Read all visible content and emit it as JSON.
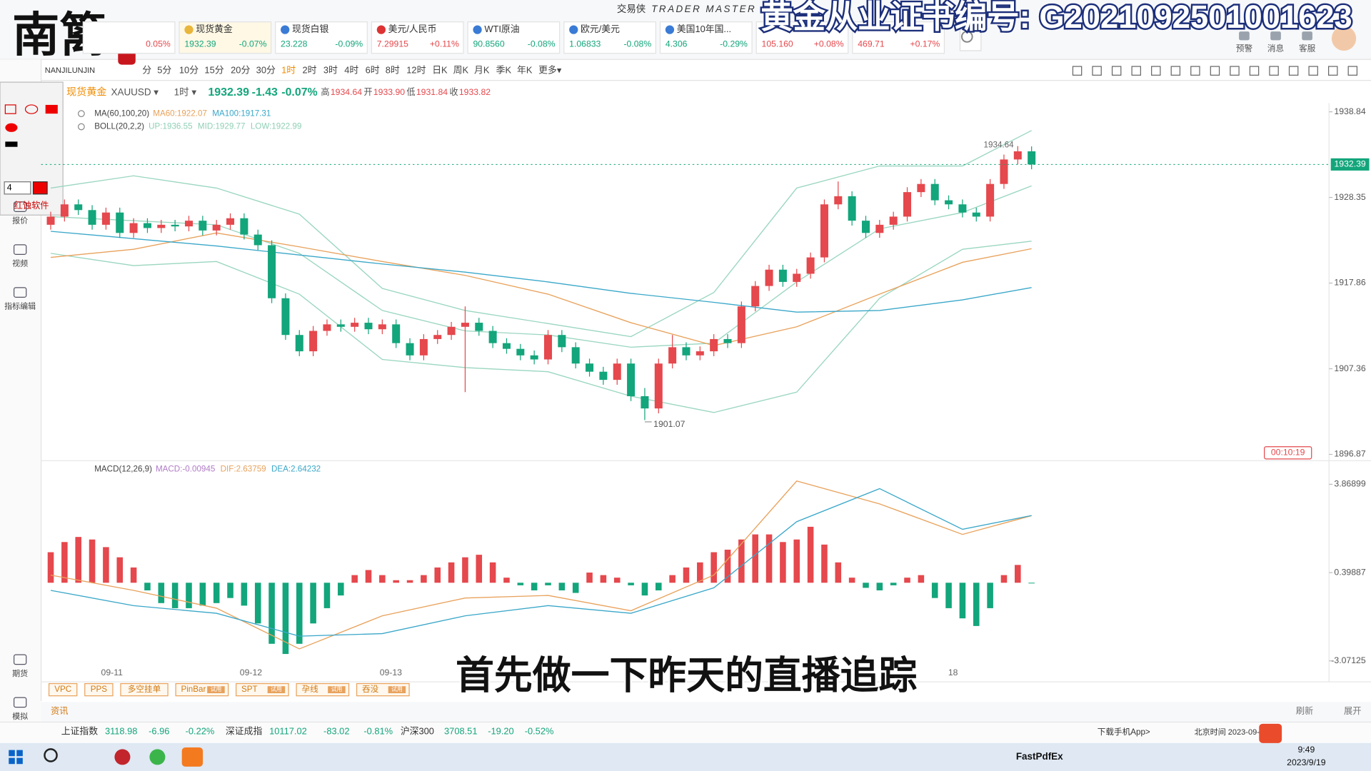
{
  "ui": {
    "logo": "南篱",
    "logo_en": "NANJILUNJIN",
    "brand": "交易侠",
    "brand_en": "TRADER MASTER",
    "watermark": "黄金从业证书编号: G2021092501001623",
    "tickers": [
      {
        "change": "0.05%"
      },
      {
        "name": "现货黄金",
        "price": "1932.39",
        "change": "-0.07%"
      },
      {
        "name": "现货白银",
        "price": "23.228",
        "change": "-0.09%"
      },
      {
        "name": "美元/人民币",
        "price": "7.29915",
        "change": "+0.11%"
      },
      {
        "name": "WTI原油",
        "price": "90.8560",
        "change": "-0.08%"
      },
      {
        "name": "欧元/美元",
        "price": "1.06833",
        "change": "-0.08%"
      },
      {
        "name": "美国10年国...",
        "price": "4.306",
        "change": "-0.29%"
      },
      {
        "price": "105.160",
        "change": "+0.08%"
      },
      {
        "price": "469.71",
        "change": "+0.17%"
      }
    ],
    "header_icons": [
      "预警",
      "消息",
      "客服"
    ],
    "timeframes": [
      "分",
      "5分",
      "10分",
      "15分",
      "20分",
      "30分",
      "1时",
      "2时",
      "3时",
      "4时",
      "6时",
      "8时",
      "12时",
      "日K",
      "周K",
      "月K",
      "季K",
      "年K",
      "更多▾"
    ],
    "symbol_name": "现货黄金",
    "symbol_code": "XAUUSD ▾",
    "interval": "1时 ▾",
    "quote": {
      "price": "1932.39",
      "change": "-1.43",
      "pct": "-0.07%"
    },
    "ohlc": [
      {
        "k": "高",
        "v": "1934.64"
      },
      {
        "k": "开",
        "v": "1933.90"
      },
      {
        "k": "低",
        "v": "1931.84"
      },
      {
        "k": "收",
        "v": "1933.82"
      }
    ],
    "sidebar": [
      "报价",
      "视频",
      "指标编辑",
      "期货",
      "模拟"
    ],
    "palette": {
      "size": "4",
      "name": "红蚀软件"
    },
    "tools_bottom": [
      {
        "label": "VPC"
      },
      {
        "label": "PPS"
      },
      {
        "label": "多空挂单"
      },
      {
        "label": "PinBar",
        "badge": "试用"
      },
      {
        "label": "SPT",
        "badge": "试用"
      },
      {
        "label": "孕线",
        "badge": "试用"
      },
      {
        "label": "吞没",
        "badge": "试用"
      }
    ],
    "news": {
      "title": "资讯",
      "refresh": "刷新",
      "expand": "展开"
    },
    "indices": [
      {
        "name": "上证指数",
        "value": "3118.98",
        "change": "-6.96",
        "pct": "-0.22%"
      },
      {
        "name": "深证成指",
        "value": "10117.02",
        "change": "-83.02",
        "pct": "-0.81%"
      },
      {
        "name": "沪深300",
        "value": "3708.51",
        "change": "-19.20",
        "pct": "-0.52%"
      }
    ],
    "app_link": "下载手机App>",
    "clock": "北京时间 2023-09-",
    "subtitle": "首先做一下昨天的直播追踪",
    "taskbar": {
      "app": "FastPdfEx",
      "time": "9:49",
      "date": "2023/9/19"
    }
  },
  "chart_data": [
    {
      "type": "candlestick",
      "up_color": "#e5484d",
      "down_color": "#13a57b",
      "ylim": [
        1896.1,
        1939.9
      ],
      "yticks": [
        1938.84,
        1928.35,
        1917.86,
        1907.36,
        1896.87
      ],
      "xtick_labels": [
        "09-11",
        "09-12",
        "09-13",
        "18"
      ],
      "last_price": 1932.39,
      "high_label": 1934.64,
      "low_label": 1901.07,
      "countdown": "00:10:19",
      "indicators": [
        {
          "name": "MA(60,100,20)",
          "items": [
            {
              "text": "MA60:1922.07",
              "color": "#e8a25c"
            },
            {
              "text": "MA100:1917.31",
              "color": "#3aa7c9"
            }
          ]
        },
        {
          "name": "BOLL(20,2,2)",
          "items": [
            {
              "text": "UP:1936.55",
              "color": "#8fcfb5"
            },
            {
              "text": "MID:1929.77",
              "color": "#8fcfb5"
            },
            {
              "text": "LOW:1922.99",
              "color": "#8fcfb5"
            }
          ]
        }
      ],
      "candles": [
        [
          1925.0,
          1926.6,
          1924.4,
          1926.0
        ],
        [
          1926.0,
          1928.1,
          1925.4,
          1927.5
        ],
        [
          1927.5,
          1928.1,
          1926.2,
          1926.8
        ],
        [
          1926.8,
          1927.4,
          1924.4,
          1925.0
        ],
        [
          1925.0,
          1927.1,
          1924.4,
          1926.5
        ],
        [
          1926.5,
          1927.1,
          1923.4,
          1924.0
        ],
        [
          1924.0,
          1925.8,
          1923.4,
          1925.2
        ],
        [
          1925.2,
          1925.8,
          1924.0,
          1924.6
        ],
        [
          1924.6,
          1925.6,
          1924.0,
          1925.0
        ],
        [
          1925.0,
          1925.6,
          1924.2,
          1924.8
        ],
        [
          1924.8,
          1926.1,
          1924.2,
          1925.5
        ],
        [
          1925.5,
          1926.1,
          1923.7,
          1924.3
        ],
        [
          1924.3,
          1925.6,
          1923.7,
          1925.0
        ],
        [
          1925.0,
          1926.4,
          1924.4,
          1925.8
        ],
        [
          1925.8,
          1926.4,
          1923.2,
          1923.8
        ],
        [
          1923.8,
          1924.4,
          1921.9,
          1922.5
        ],
        [
          1922.5,
          1923.1,
          1915.4,
          1916.0
        ],
        [
          1916.0,
          1916.6,
          1910.9,
          1911.5
        ],
        [
          1911.5,
          1912.1,
          1908.9,
          1909.5
        ],
        [
          1909.5,
          1912.6,
          1908.9,
          1912.0
        ],
        [
          1912.0,
          1913.4,
          1911.4,
          1912.8
        ],
        [
          1912.8,
          1913.4,
          1911.9,
          1912.5
        ],
        [
          1912.5,
          1913.6,
          1911.9,
          1913.0
        ],
        [
          1913.0,
          1913.6,
          1911.6,
          1912.2
        ],
        [
          1912.2,
          1913.4,
          1911.6,
          1912.8
        ],
        [
          1912.8,
          1913.4,
          1909.9,
          1910.5
        ],
        [
          1910.5,
          1911.1,
          1908.4,
          1909.0
        ],
        [
          1909.0,
          1911.6,
          1908.4,
          1911.0
        ],
        [
          1911.0,
          1912.1,
          1910.4,
          1911.5
        ],
        [
          1911.5,
          1913.1,
          1910.9,
          1912.5
        ],
        [
          1912.5,
          1915.0,
          1904.5,
          1913.0
        ],
        [
          1913.0,
          1913.6,
          1911.4,
          1912.0
        ],
        [
          1912.0,
          1912.6,
          1909.9,
          1910.5
        ],
        [
          1910.5,
          1911.1,
          1909.2,
          1909.8
        ],
        [
          1909.8,
          1910.4,
          1908.4,
          1909.0
        ],
        [
          1909.0,
          1909.6,
          1907.9,
          1908.5
        ],
        [
          1908.5,
          1912.1,
          1907.9,
          1911.5
        ],
        [
          1911.5,
          1912.1,
          1909.4,
          1910.0
        ],
        [
          1910.0,
          1910.6,
          1907.4,
          1908.0
        ],
        [
          1908.0,
          1908.6,
          1906.4,
          1907.0
        ],
        [
          1907.0,
          1907.6,
          1905.4,
          1906.0
        ],
        [
          1906.0,
          1908.6,
          1905.4,
          1908.0
        ],
        [
          1908.0,
          1908.6,
          1903.4,
          1904.0
        ],
        [
          1904.0,
          1905.0,
          1901.07,
          1902.5
        ],
        [
          1902.5,
          1908.6,
          1901.9,
          1908.0
        ],
        [
          1908.0,
          1911.5,
          1907.4,
          1910.0
        ],
        [
          1910.0,
          1910.6,
          1908.4,
          1909.0
        ],
        [
          1909.0,
          1910.1,
          1908.4,
          1909.5
        ],
        [
          1909.5,
          1911.6,
          1908.9,
          1911.0
        ],
        [
          1911.0,
          1911.6,
          1909.9,
          1910.5
        ],
        [
          1910.5,
          1915.6,
          1909.9,
          1915.0
        ],
        [
          1915.0,
          1918.1,
          1914.4,
          1917.5
        ],
        [
          1917.5,
          1920.1,
          1916.9,
          1919.5
        ],
        [
          1919.5,
          1920.1,
          1917.4,
          1918.0
        ],
        [
          1918.0,
          1919.6,
          1917.4,
          1919.0
        ],
        [
          1919.0,
          1921.6,
          1918.4,
          1921.0
        ],
        [
          1921.0,
          1928.1,
          1920.4,
          1927.5
        ],
        [
          1927.5,
          1930.3,
          1926.9,
          1928.5
        ],
        [
          1928.5,
          1929.1,
          1924.9,
          1925.5
        ],
        [
          1925.5,
          1926.1,
          1923.4,
          1924.0
        ],
        [
          1924.0,
          1925.6,
          1923.4,
          1925.0
        ],
        [
          1925.0,
          1926.6,
          1924.4,
          1926.0
        ],
        [
          1926.0,
          1929.6,
          1925.4,
          1929.0
        ],
        [
          1929.0,
          1930.6,
          1928.4,
          1930.0
        ],
        [
          1930.0,
          1930.6,
          1927.4,
          1928.0
        ],
        [
          1928.0,
          1928.6,
          1926.9,
          1927.5
        ],
        [
          1927.5,
          1928.1,
          1925.9,
          1926.5
        ],
        [
          1926.5,
          1927.1,
          1925.4,
          1926.0
        ],
        [
          1926.0,
          1930.6,
          1925.4,
          1930.0
        ],
        [
          1930.0,
          1933.6,
          1929.4,
          1933.0
        ],
        [
          1933.0,
          1934.64,
          1932.4,
          1934.0
        ],
        [
          1934.0,
          1934.6,
          1931.8,
          1932.39
        ]
      ],
      "line_x": [
        0,
        6,
        12,
        18,
        24,
        30,
        36,
        42,
        48,
        54,
        60,
        66,
        71
      ],
      "series": [
        {
          "name": "UP",
          "color": "#9ad6bf",
          "values": [
            1929.5,
            1931.0,
            1929.5,
            1926.3,
            1917.2,
            1914.5,
            1912.9,
            1911.3,
            1916.7,
            1929.5,
            1932.2,
            1932.2,
            1936.55
          ]
        },
        {
          "name": "MID",
          "color": "#9ad6bf",
          "values": [
            1926.0,
            1925.5,
            1925.0,
            1921.5,
            1914.5,
            1912.0,
            1911.5,
            1910.0,
            1910.5,
            1918.0,
            1924.5,
            1926.5,
            1929.77
          ]
        },
        {
          "name": "LOW",
          "color": "#9ad6bf",
          "values": [
            1921.5,
            1920.0,
            1920.5,
            1916.5,
            1908.5,
            1907.5,
            1907.0,
            1904.0,
            1902.0,
            1904.5,
            1916.0,
            1922.0,
            1922.99
          ]
        },
        {
          "name": "MA60",
          "color": "#e8a25c",
          "values": [
            1921.0,
            1922.0,
            1924.0,
            1922.3,
            1920.5,
            1918.8,
            1916.5,
            1913.0,
            1910.2,
            1912.5,
            1916.5,
            1920.4,
            1922.07
          ]
        },
        {
          "name": "MA100",
          "color": "#3aa7c9",
          "values": [
            1924.2,
            1923.3,
            1922.4,
            1921.3,
            1920.2,
            1919.2,
            1918.0,
            1916.6,
            1915.5,
            1914.3,
            1914.5,
            1915.8,
            1917.31
          ]
        }
      ]
    },
    {
      "type": "bar",
      "title": "MACD(12,26,9)",
      "indicators": [
        {
          "text": "MACD:-0.00945",
          "color": "#b07cc6"
        },
        {
          "text": "DIF:2.63759",
          "color": "#e8a25c"
        },
        {
          "text": "DEA:2.64232",
          "color": "#3aa7c9"
        }
      ],
      "ylim": [
        -3.38,
        4.18
      ],
      "yticks": [
        3.86899,
        0.39887,
        -3.07125
      ],
      "up_color": "#e5484d",
      "down_color": "#13a57b",
      "values": [
        1.2,
        1.6,
        1.8,
        1.7,
        1.4,
        1.0,
        0.6,
        -0.3,
        -0.8,
        -1.0,
        -1.0,
        -0.9,
        -0.8,
        -0.6,
        -0.9,
        -1.6,
        -2.4,
        -2.8,
        -2.4,
        -1.6,
        -1.0,
        -0.5,
        0.3,
        0.5,
        0.3,
        0.1,
        0.1,
        0.3,
        0.6,
        0.8,
        1.0,
        1.1,
        0.8,
        0.2,
        -0.1,
        -0.3,
        -0.1,
        -0.3,
        -0.4,
        0.4,
        0.3,
        0.2,
        -0.1,
        -0.5,
        -0.3,
        0.3,
        0.6,
        0.8,
        1.2,
        1.3,
        1.7,
        1.9,
        1.9,
        1.6,
        1.7,
        2.2,
        1.5,
        0.8,
        0.2,
        -0.2,
        -0.3,
        -0.1,
        0.2,
        0.3,
        -0.6,
        -1.0,
        -1.4,
        -1.7,
        -1.0,
        0.3,
        0.7,
        -0.00945
      ],
      "line_x": [
        0,
        6,
        12,
        18,
        24,
        30,
        36,
        42,
        48,
        54,
        60,
        66,
        71
      ],
      "series": [
        {
          "name": "DIF",
          "color": "#e8a25c",
          "values": [
            0.3,
            -0.3,
            -1.0,
            -2.6,
            -1.3,
            -0.6,
            -0.5,
            -1.1,
            0.3,
            4.0,
            3.1,
            1.9,
            2.63759
          ]
        },
        {
          "name": "DEA",
          "color": "#3aa7c9",
          "values": [
            -0.3,
            -0.9,
            -1.2,
            -2.1,
            -2.0,
            -1.3,
            -0.9,
            -1.2,
            -0.2,
            2.4,
            3.7,
            2.1,
            2.64232
          ]
        }
      ]
    }
  ]
}
